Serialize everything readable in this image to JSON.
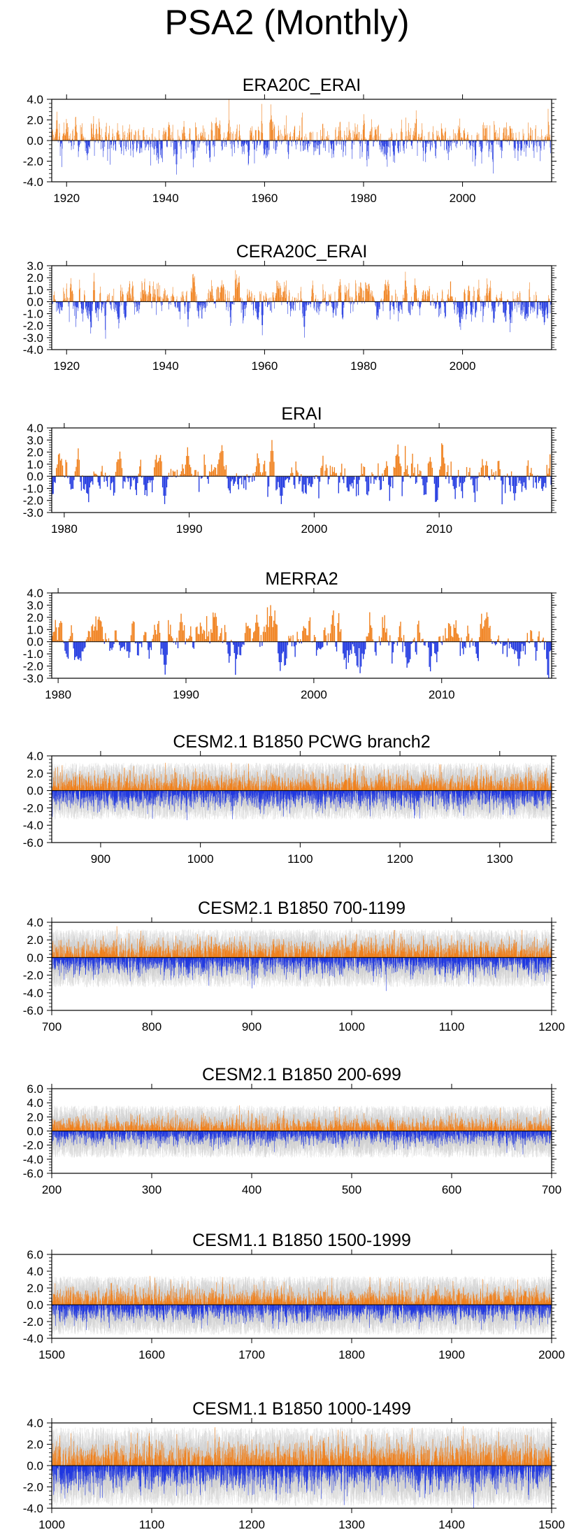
{
  "page_title": "PSA2 (Monthly)",
  "colors": {
    "positive": "#f0801c",
    "negative": "#2038e0",
    "spread": "#c8c8c8",
    "axis": "#000000",
    "zero_line": "#000000"
  },
  "chart_data": [
    {
      "type": "bar",
      "title": "ERA20C_ERAI",
      "xlabel": "",
      "ylabel": "",
      "xlim": [
        1917,
        2018
      ],
      "ylim": [
        -4,
        4
      ],
      "yticks": [
        "4.0",
        "2.0",
        "0.0",
        "-2.0",
        "-4.0"
      ],
      "ytick_values": [
        4,
        2,
        0,
        -2,
        -4
      ],
      "xticks": [
        "1920",
        "1940",
        "1960",
        "1980",
        "2000"
      ],
      "xtick_values": [
        1920,
        1940,
        1960,
        1980,
        2000
      ],
      "series": [
        {
          "values_description_seed": 11,
          "amplitude": 1.0,
          "persistence": 0.55,
          "spread": 0.0
        }
      ],
      "peaks": [
        [
          1943.7,
          1.9
        ],
        [
          1945.6,
          -2.6
        ],
        [
          1942.2,
          -3.3
        ],
        [
          1918.0,
          2.8
        ],
        [
          1926.0,
          1.6
        ]
      ]
    },
    {
      "type": "bar",
      "title": "CERA20C_ERAI",
      "xlabel": "",
      "ylabel": "",
      "xlim": [
        1917,
        2018
      ],
      "ylim": [
        -4,
        3
      ],
      "yticks": [
        "3.0",
        "2.0",
        "1.0",
        "0.0",
        "-1.0",
        "-2.0",
        "-3.0",
        "-4.0"
      ],
      "ytick_values": [
        3,
        2,
        1,
        0,
        -1,
        -2,
        -3,
        -4
      ],
      "xticks": [
        "1920",
        "1940",
        "1960",
        "1980",
        "2000"
      ],
      "xtick_values": [
        1920,
        1940,
        1960,
        1980,
        2000
      ],
      "series": [
        {
          "values_description_seed": 23,
          "amplitude": 0.9,
          "persistence": 0.75,
          "spread": 0.0
        }
      ],
      "peaks": [
        [
          1944.5,
          -2.1
        ],
        [
          1959.5,
          -2.8
        ],
        [
          1988.4,
          2.5
        ],
        [
          1925.5,
          2.4
        ],
        [
          1968.0,
          -3.0
        ]
      ]
    },
    {
      "type": "bar",
      "title": "ERAI",
      "xlabel": "",
      "ylabel": "",
      "xlim": [
        1979,
        2019
      ],
      "ylim": [
        -3,
        4
      ],
      "yticks": [
        "4.0",
        "3.0",
        "2.0",
        "1.0",
        "0.0",
        "-1.0",
        "-2.0",
        "-3.0"
      ],
      "ytick_values": [
        4,
        3,
        2,
        1,
        0,
        -1,
        -2,
        -3
      ],
      "xticks": [
        "1980",
        "1990",
        "2000",
        "2010"
      ],
      "xtick_values": [
        1980,
        1990,
        2000,
        2010
      ],
      "series": [
        {
          "values_description_seed": 37,
          "amplitude": 1.0,
          "persistence": 0.7,
          "spread": 0.0
        }
      ],
      "peaks": [
        [
          1996.6,
          3.0
        ],
        [
          1989.8,
          2.4
        ],
        [
          1997.3,
          -2.3
        ],
        [
          1988.0,
          -2.3
        ],
        [
          2016.0,
          -2.0
        ]
      ]
    },
    {
      "type": "bar",
      "title": "MERRA2",
      "xlabel": "",
      "ylabel": "",
      "xlim": [
        1979.5,
        2018.6
      ],
      "ylim": [
        -3,
        4
      ],
      "yticks": [
        "4.0",
        "3.0",
        "2.0",
        "1.0",
        "0.0",
        "-1.0",
        "-2.0",
        "-3.0"
      ],
      "ytick_values": [
        4,
        3,
        2,
        1,
        0,
        -1,
        -2,
        -3
      ],
      "xticks": [
        "1980",
        "1990",
        "2000",
        "2010"
      ],
      "xtick_values": [
        1980,
        1990,
        2000,
        2010
      ],
      "series": [
        {
          "values_description_seed": 41,
          "amplitude": 1.0,
          "persistence": 0.7,
          "spread": 0.0
        }
      ],
      "peaks": [
        [
          1996.6,
          3.0
        ],
        [
          1989.6,
          2.3
        ],
        [
          1988.3,
          -2.7
        ],
        [
          1997.3,
          -2.4
        ],
        [
          2016.0,
          -2.0
        ]
      ]
    },
    {
      "type": "bar",
      "title": "CESM2.1 B1850 PCWG branch2",
      "xlabel": "",
      "ylabel": "",
      "xlim": [
        851,
        1352
      ],
      "ylim": [
        -6,
        4
      ],
      "yticks": [
        "4.0",
        "2.0",
        "0.0",
        "-2.0",
        "-4.0",
        "-6.0"
      ],
      "ytick_values": [
        4,
        2,
        0,
        -2,
        -4,
        -6
      ],
      "xticks": [
        "900",
        "1000",
        "1100",
        "1200",
        "1300"
      ],
      "xtick_values": [
        900,
        1000,
        1100,
        1200,
        1300
      ],
      "series": [
        {
          "values_description_seed": 53,
          "amplitude": 0.9,
          "persistence": 0.35,
          "spread": 1.6
        }
      ],
      "peaks": [
        [
          1048,
          3.1
        ],
        [
          1155,
          2.9
        ],
        [
          1032,
          -3.3
        ],
        [
          1214,
          -3.2
        ],
        [
          1083,
          -3.0
        ]
      ]
    },
    {
      "type": "bar",
      "title": "CESM2.1 B1850 700-1199",
      "xlabel": "",
      "ylabel": "",
      "xlim": [
        700,
        1200
      ],
      "ylim": [
        -6,
        4
      ],
      "yticks": [
        "4.0",
        "2.0",
        "0.0",
        "-2.0",
        "-4.0",
        "-6.0"
      ],
      "ytick_values": [
        4,
        2,
        0,
        -2,
        -4,
        -6
      ],
      "xticks": [
        "700",
        "800",
        "900",
        "1000",
        "1100",
        "1200"
      ],
      "xtick_values": [
        700,
        800,
        900,
        1000,
        1100,
        1200
      ],
      "series": [
        {
          "values_description_seed": 67,
          "amplitude": 0.9,
          "persistence": 0.35,
          "spread": 1.6
        }
      ],
      "peaks": [
        [
          898,
          2.4
        ],
        [
          1019,
          2.3
        ],
        [
          900,
          -3.5
        ],
        [
          857,
          -3.2
        ],
        [
          1117,
          -3.0
        ]
      ]
    },
    {
      "type": "bar",
      "title": "CESM2.1 B1850 200-699",
      "xlabel": "",
      "ylabel": "",
      "xlim": [
        200,
        700
      ],
      "ylim": [
        -6,
        6
      ],
      "yticks": [
        "6.0",
        "4.0",
        "2.0",
        "0.0",
        "-2.0",
        "-4.0",
        "-6.0"
      ],
      "ytick_values": [
        6,
        4,
        2,
        0,
        -2,
        -4,
        -6
      ],
      "xticks": [
        "200",
        "300",
        "400",
        "500",
        "600",
        "700"
      ],
      "xtick_values": [
        200,
        300,
        400,
        500,
        600,
        700
      ],
      "series": [
        {
          "values_description_seed": 79,
          "amplitude": 0.9,
          "persistence": 0.35,
          "spread": 1.8
        }
      ],
      "peaks": [
        [
          381,
          2.4
        ],
        [
          224,
          2.0
        ],
        [
          655,
          -3.1
        ],
        [
          491,
          -2.6
        ],
        [
          398,
          -2.8
        ]
      ]
    },
    {
      "type": "bar",
      "title": "CESM1.1 B1850 1500-1999",
      "xlabel": "",
      "ylabel": "",
      "xlim": [
        1500,
        2000
      ],
      "ylim": [
        -4,
        6
      ],
      "yticks": [
        "6.0",
        "4.0",
        "2.0",
        "0.0",
        "-2.0",
        "-4.0"
      ],
      "ytick_values": [
        6,
        4,
        2,
        0,
        -2,
        -4
      ],
      "xticks": [
        "1500",
        "1600",
        "1700",
        "1800",
        "1900",
        "2000"
      ],
      "xtick_values": [
        1500,
        1600,
        1700,
        1800,
        1900,
        2000
      ],
      "series": [
        {
          "values_description_seed": 83,
          "amplitude": 0.9,
          "persistence": 0.35,
          "spread": 1.7
        }
      ],
      "peaks": [
        [
          1818,
          3.3
        ],
        [
          1604,
          2.6
        ],
        [
          1680,
          -2.3
        ],
        [
          1852,
          -2.2
        ],
        [
          1549,
          -2.1
        ]
      ]
    },
    {
      "type": "bar",
      "title": "CESM1.1 B1850 1000-1499",
      "xlabel": "",
      "ylabel": "",
      "xlim": [
        1000,
        1500
      ],
      "ylim": [
        -4,
        4
      ],
      "yticks": [
        "4.0",
        "2.0",
        "0.0",
        "-2.0",
        "-4.0"
      ],
      "ytick_values": [
        4,
        2,
        0,
        -2,
        -4
      ],
      "xticks": [
        "1000",
        "1100",
        "1200",
        "1300",
        "1400",
        "1500"
      ],
      "xtick_values": [
        1000,
        1100,
        1200,
        1300,
        1400,
        1500
      ],
      "series": [
        {
          "values_description_seed": 97,
          "amplitude": 1.0,
          "persistence": 0.4,
          "spread": 1.8
        }
      ],
      "peaks": [
        [
          1163,
          3.6
        ],
        [
          1079,
          3.1
        ],
        [
          1013,
          -3.1
        ],
        [
          1089,
          -2.8
        ],
        [
          1378,
          -2.7
        ]
      ]
    }
  ]
}
